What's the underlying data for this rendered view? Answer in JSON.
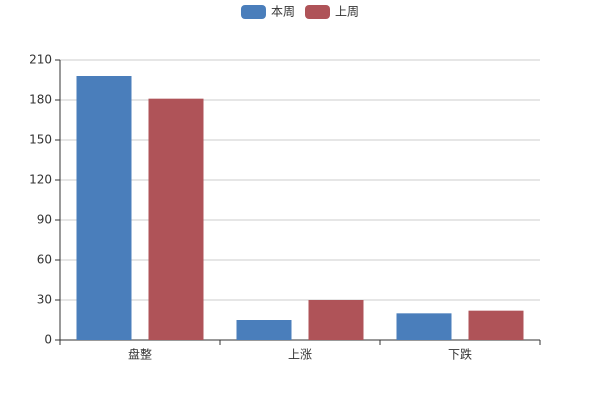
{
  "chart_data": {
    "type": "bar",
    "categories": [
      "盘整",
      "上涨",
      "下跌"
    ],
    "series": [
      {
        "name": "本周",
        "color": "#4a7ebb",
        "values": [
          198,
          15,
          20
        ]
      },
      {
        "name": "上周",
        "color": "#af5358",
        "values": [
          181,
          30,
          22
        ]
      }
    ],
    "ylim": [
      0,
      210
    ],
    "yticks": [
      0,
      30,
      60,
      90,
      120,
      150,
      180,
      210
    ],
    "grid": true,
    "legend": "top"
  }
}
